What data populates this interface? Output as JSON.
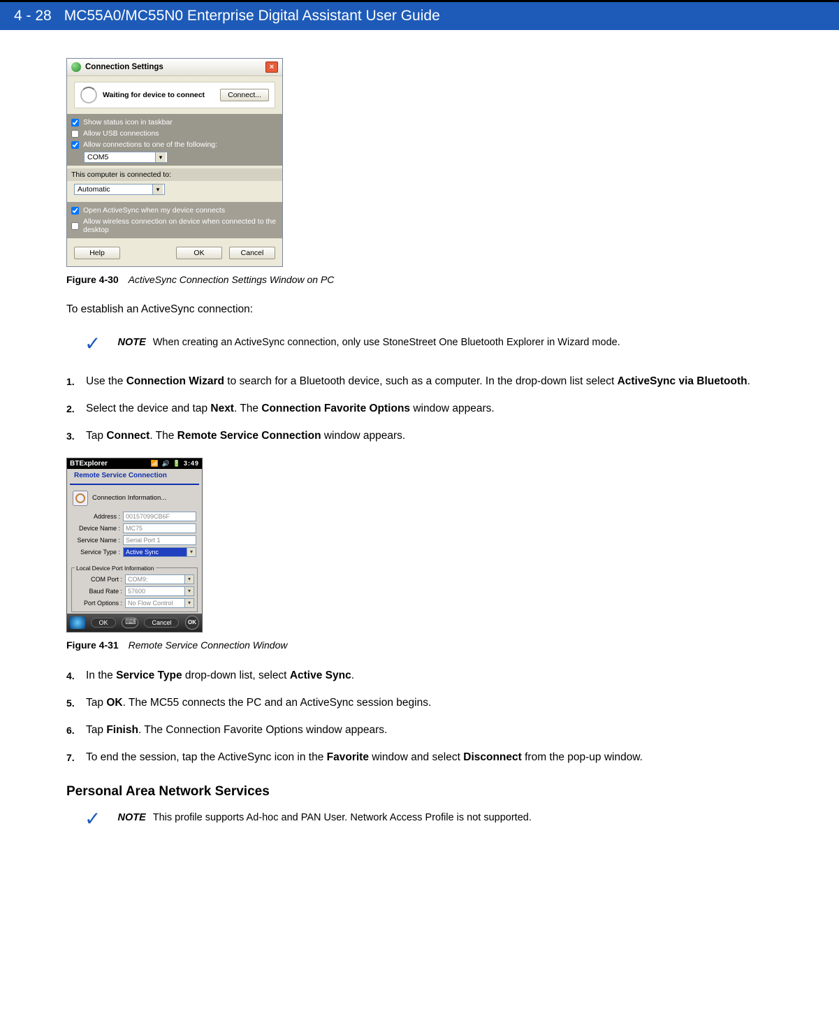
{
  "header": {
    "page_number": "4 - 28",
    "title": "MC55A0/MC55N0 Enterprise Digital Assistant User Guide"
  },
  "colors": {
    "header_bg": "#1e5bb8",
    "header_text": "#ffffff",
    "check_color": "#1e5bb8"
  },
  "dialog1": {
    "title": "Connection Settings",
    "wait_msg": "Waiting for device to connect",
    "connect_btn": "Connect...",
    "chk_status": "Show status icon in taskbar",
    "chk_usb": "Allow USB connections",
    "chk_allow": "Allow connections to one of the following:",
    "combo_port": "COM5",
    "subhead": "This computer is connected to:",
    "combo_net": "Automatic",
    "chk_open": "Open ActiveSync when my device connects",
    "chk_wireless": "Allow wireless connection on device when connected to the desktop",
    "help": "Help",
    "ok": "OK",
    "cancel": "Cancel"
  },
  "fig1": {
    "num": "Figure 4-30",
    "title": "ActiveSync Connection Settings Window on PC"
  },
  "intro": "To establish an ActiveSync connection:",
  "note1": {
    "label": "NOTE",
    "text": "When creating an ActiveSync connection, only use StoneStreet One Bluetooth Explorer in Wizard mode."
  },
  "steps1": {
    "s1a": "Use the ",
    "s1b": "Connection Wizard",
    "s1c": " to search for a Bluetooth device, such as a computer. In the drop-down list select ",
    "s1d": "ActiveSync via Bluetooth",
    "s1e": ".",
    "s2a": "Select the device and tap ",
    "s2b": "Next",
    "s2c": ". The ",
    "s2d": "Connection Favorite Options",
    "s2e": " window appears.",
    "s3a": "Tap ",
    "s3b": "Connect",
    "s3c": ". The ",
    "s3d": "Remote Service Connection",
    "s3e": " window appears."
  },
  "mob": {
    "title": "BTExplorer",
    "time": "3:49",
    "sub": "Remote Service Connection",
    "info": "Connection Information...",
    "addr_l": "Address :",
    "addr_v": "00157099CB6F",
    "dev_l": "Device Name :",
    "dev_v": "MC75",
    "svc_l": "Service Name :",
    "svc_v": "Serial Port 1",
    "type_l": "Service Type :",
    "type_v": "Active Sync",
    "legend": "Local Device Port Information",
    "com_l": "COM Port :",
    "com_v": "COM9:",
    "baud_l": "Baud Rate :",
    "baud_v": "57600",
    "opt_l": "Port Options :",
    "opt_v": "No Flow Control",
    "ok": "OK",
    "cancel": "Cancel",
    "okround": "OK"
  },
  "fig2": {
    "num": "Figure 4-31",
    "title": "Remote Service Connection Window"
  },
  "steps2": {
    "s4a": "In the ",
    "s4b": "Service Type",
    "s4c": " drop-down list, select ",
    "s4d": "Active Sync",
    "s4e": ".",
    "s5a": "Tap ",
    "s5b": "OK",
    "s5c": ". The MC55 connects the PC and an ActiveSync session begins.",
    "s6a": "Tap ",
    "s6b": "Finish",
    "s6c": ". The Connection Favorite Options window appears.",
    "s7a": "To end the session, tap the ActiveSync icon in the ",
    "s7b": "Favorite",
    "s7c": " window and select ",
    "s7d": "Disconnect",
    "s7e": " from the pop-up window."
  },
  "section_head": "Personal Area Network Services",
  "note2": {
    "label": "NOTE",
    "text": "This profile supports Ad-hoc and PAN User. Network Access Profile is not supported."
  }
}
